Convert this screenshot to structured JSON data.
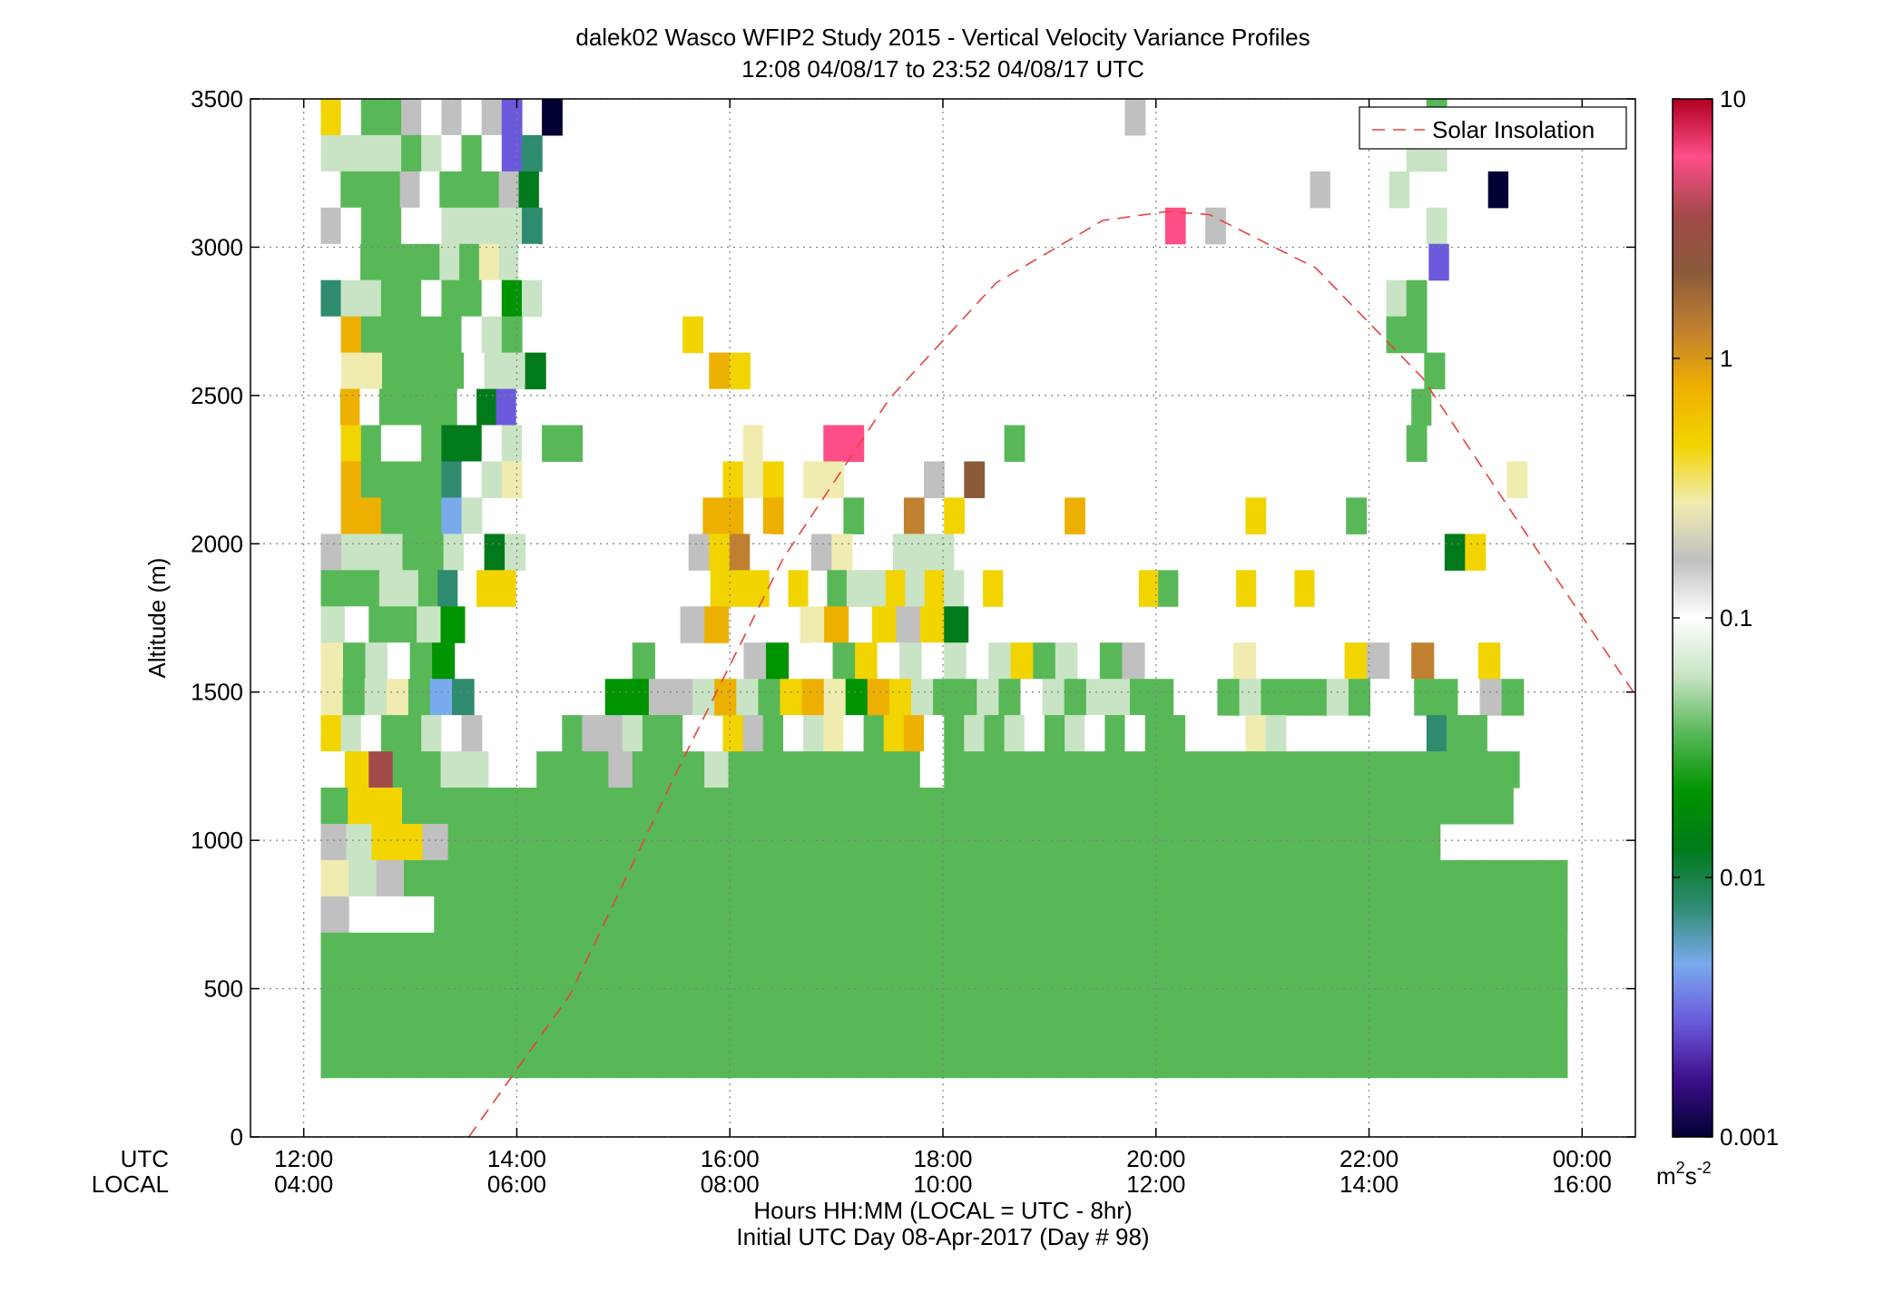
{
  "chart_data": {
    "type": "heatmap",
    "title": "dalek02 Wasco WFIP2 Study 2015 - Vertical Velocity Variance Profiles",
    "subtitle": "12:08 04/08/17 to 23:52 04/08/17  UTC",
    "ylabel": "Altitude (m)",
    "xlabel": "Hours HH:MM  (LOCAL = UTC - 8hr)",
    "xlabel2": "Initial UTC Day 08-Apr-2017 (Day # 98)",
    "xrow_labels": [
      "UTC",
      "LOCAL"
    ],
    "xlim_hours": [
      11.5,
      24.5
    ],
    "ylim": [
      0,
      3500
    ],
    "yticks": [
      0,
      500,
      1000,
      1500,
      2000,
      2500,
      3000,
      3500
    ],
    "yticklabels": [
      "0",
      "500",
      "1000",
      "1500",
      "2000",
      "2500",
      "3000",
      "3500"
    ],
    "xticks": [
      12,
      14,
      16,
      18,
      20,
      22,
      24
    ],
    "xticklabels_utc": [
      "12:00",
      "14:00",
      "16:00",
      "18:00",
      "20:00",
      "22:00",
      "00:00"
    ],
    "xticklabels_local": [
      "04:00",
      "06:00",
      "08:00",
      "10:00",
      "12:00",
      "14:00",
      "16:00"
    ],
    "grid": true,
    "legend": {
      "position": "top-right",
      "entries": [
        "Solar Insolation"
      ]
    },
    "colorbar": {
      "scale": "log",
      "range": [
        0.001,
        10
      ],
      "ticks": [
        "0.001",
        "0.01",
        "0.1",
        "1",
        "10"
      ],
      "unit_main": "m",
      "unit_sup1": "2",
      "unit_s": "s",
      "unit_sup2": "-2"
    },
    "colors": {
      "axes": "#000000",
      "grid": "#7f7f7f",
      "curve": "#e8423f",
      "colormap_stops": [
        "#000033",
        "#3e0f8a",
        "#6a5adb",
        "#7aaaee",
        "#2e8b70",
        "#007a1a",
        "#009400",
        "#58b858",
        "#c8e4c4",
        "#ffffff",
        "#c0c0c0",
        "#f0ecb0",
        "#f2d400",
        "#eeb000",
        "#c08030",
        "#8a5a3a",
        "#a34a4a",
        "#ff4d88",
        "#b00020"
      ]
    },
    "solar_insolation": {
      "x_hours": [
        13.55,
        14.5,
        15.5,
        16.5,
        17.5,
        18.5,
        19.5,
        20.1,
        20.5,
        21.5,
        22.5,
        23.5,
        24.5
      ],
      "y": [
        0,
        480,
        1230,
        1950,
        2490,
        2880,
        3090,
        3120,
        3110,
        2930,
        2560,
        2020,
        1490
      ]
    },
    "heatmap_extent": {
      "x_hours": [
        12.16,
        23.86
      ],
      "y_m": [
        200,
        3500
      ]
    },
    "heatmap_rows": [
      "mjhhkjkjkcza............................k..............ht.....",
      "iiiihijhjcez..........................................iit.....",
      "jhhhkjhhhkfz......................................k...i...za...",
      "kjhhjjiiiiez..............................r.k.........zi......",
      "jjhhhhihlij.......................................j....jc......",
      "eiihhjhhjgij.........................................ih.......",
      "jnhhhhhjihzy......m..................................hh.......",
      "jllhhhhjiifz.......nm.................................h......",
      "jnjhhhhjfcz.........j...................................h.......",
      "jmhjjhffjijhh........lj..rr.......h...................h.......",
      "jnhhhhejil..........mlm.ll....k.p.......................x..l..",
      "jnnhhhdiy..........nn.n...h..o.m.....n........m....h.j........",
      "kiiihhijfi........kmoj..kl.jiiij.......................fm....",
      "hhhiihe.mm..........mmm.m.hiimimi.m.......mh...m..m.............",
      "ijhhig.........kn...ln.mkmf.....................j...",
      "lhijhg........h....kg.jhmjijijimhijhk.j..l....mk.o..mj..",
      "lhilhde......ggkkinihmnlgnmihhihjihiihhjjhihhhihjjhhjkh..",
      "mijhhijk....hkkihhj.mkhjiljhmnjhihijhijhjhhj..li.......ehh....",
      "jmqhhiijjhhhkhhhihhhhhhhhjhhhhhhhhhhhhhhhhhhhhhhhh..",
      "hmmhhhhhhhhhhhhhhhhhhhhhhhhhhhhhhhhhhhhhhhhh..",
      "kimmkhhhhhhhhhhhhhhhhhhhhhhhhhhhhhhhhhhhhhhh.....",
      "likhhhhhhhhhhhhhhhhhhhhhhhhhhhhhhhhhhhhhhhhhh",
      "kjjjhhhhhhhhhhhhhhhhhhhhhhhhhhhhhhhhhhhhhhhh",
      "hhhhhhhhhhhhhhhhhhhhhhhhhhhhhhhhhhhhhhhh",
      "hhhhhhhhhhhhhhhhhhhhhhhhhhhhhhhhhhhhhhh",
      "hhhhhhhhhhhhhhhhhhhhhhhhhhhhhhhhhhhhhh",
      "hhhhhhhhhhhhhhhhhhhhhhhhhhhhhhhhhhhhh"
    ],
    "heatmap_grid_note": "synthetic"
  }
}
